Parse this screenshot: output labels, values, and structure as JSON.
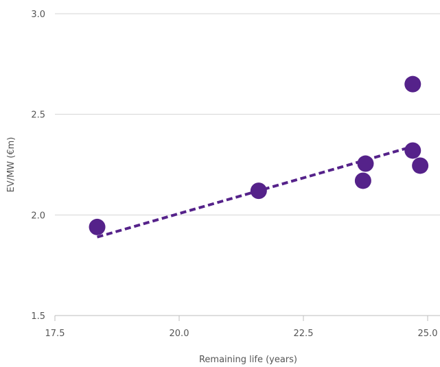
{
  "chart_data": {
    "type": "scatter",
    "title": "",
    "xlabel": "Remaining life (years)",
    "ylabel": "EV/MW (€m)",
    "xlim": [
      17.5,
      25.0
    ],
    "ylim": [
      1.5,
      3.0
    ],
    "x_ticks": [
      "17.5",
      "20.0",
      "22.5",
      "25.0"
    ],
    "y_ticks": [
      "1.5",
      "2.0",
      "2.5",
      "3.0"
    ],
    "grid": "horizontal",
    "legend": "none",
    "point_color": "#55228a",
    "trendline_color": "#55228a",
    "points": [
      {
        "x": 18.35,
        "y": 1.94
      },
      {
        "x": 21.6,
        "y": 2.12
      },
      {
        "x": 23.7,
        "y": 2.17
      },
      {
        "x": 23.75,
        "y": 2.255
      },
      {
        "x": 24.7,
        "y": 2.65
      },
      {
        "x": 24.7,
        "y": 2.32
      },
      {
        "x": 24.85,
        "y": 2.245
      }
    ],
    "trendline": {
      "type": "linear",
      "x": [
        18.35,
        24.7
      ],
      "y": [
        1.89,
        2.34
      ]
    }
  }
}
